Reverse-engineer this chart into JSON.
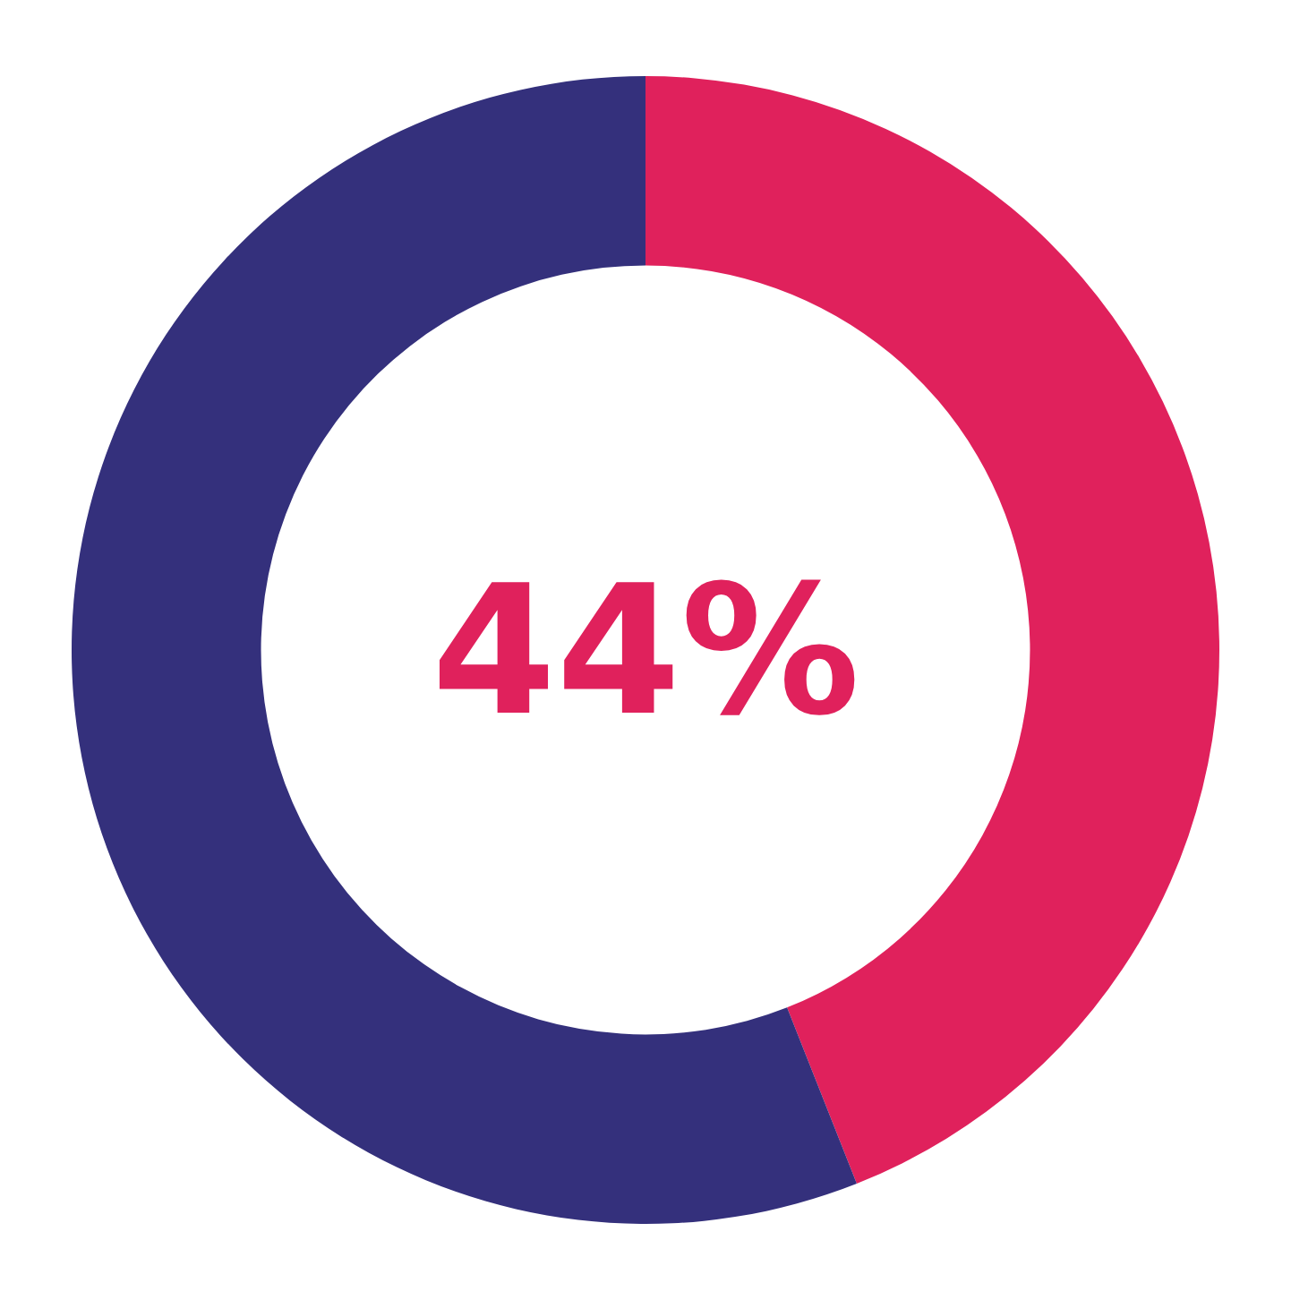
{
  "chart_data": {
    "type": "donut",
    "categories": [
      null,
      null
    ],
    "values": [
      44,
      56
    ],
    "colors": [
      "#e0215c",
      "#34307c"
    ],
    "annotations": [
      "44%"
    ],
    "legend": false
  }
}
